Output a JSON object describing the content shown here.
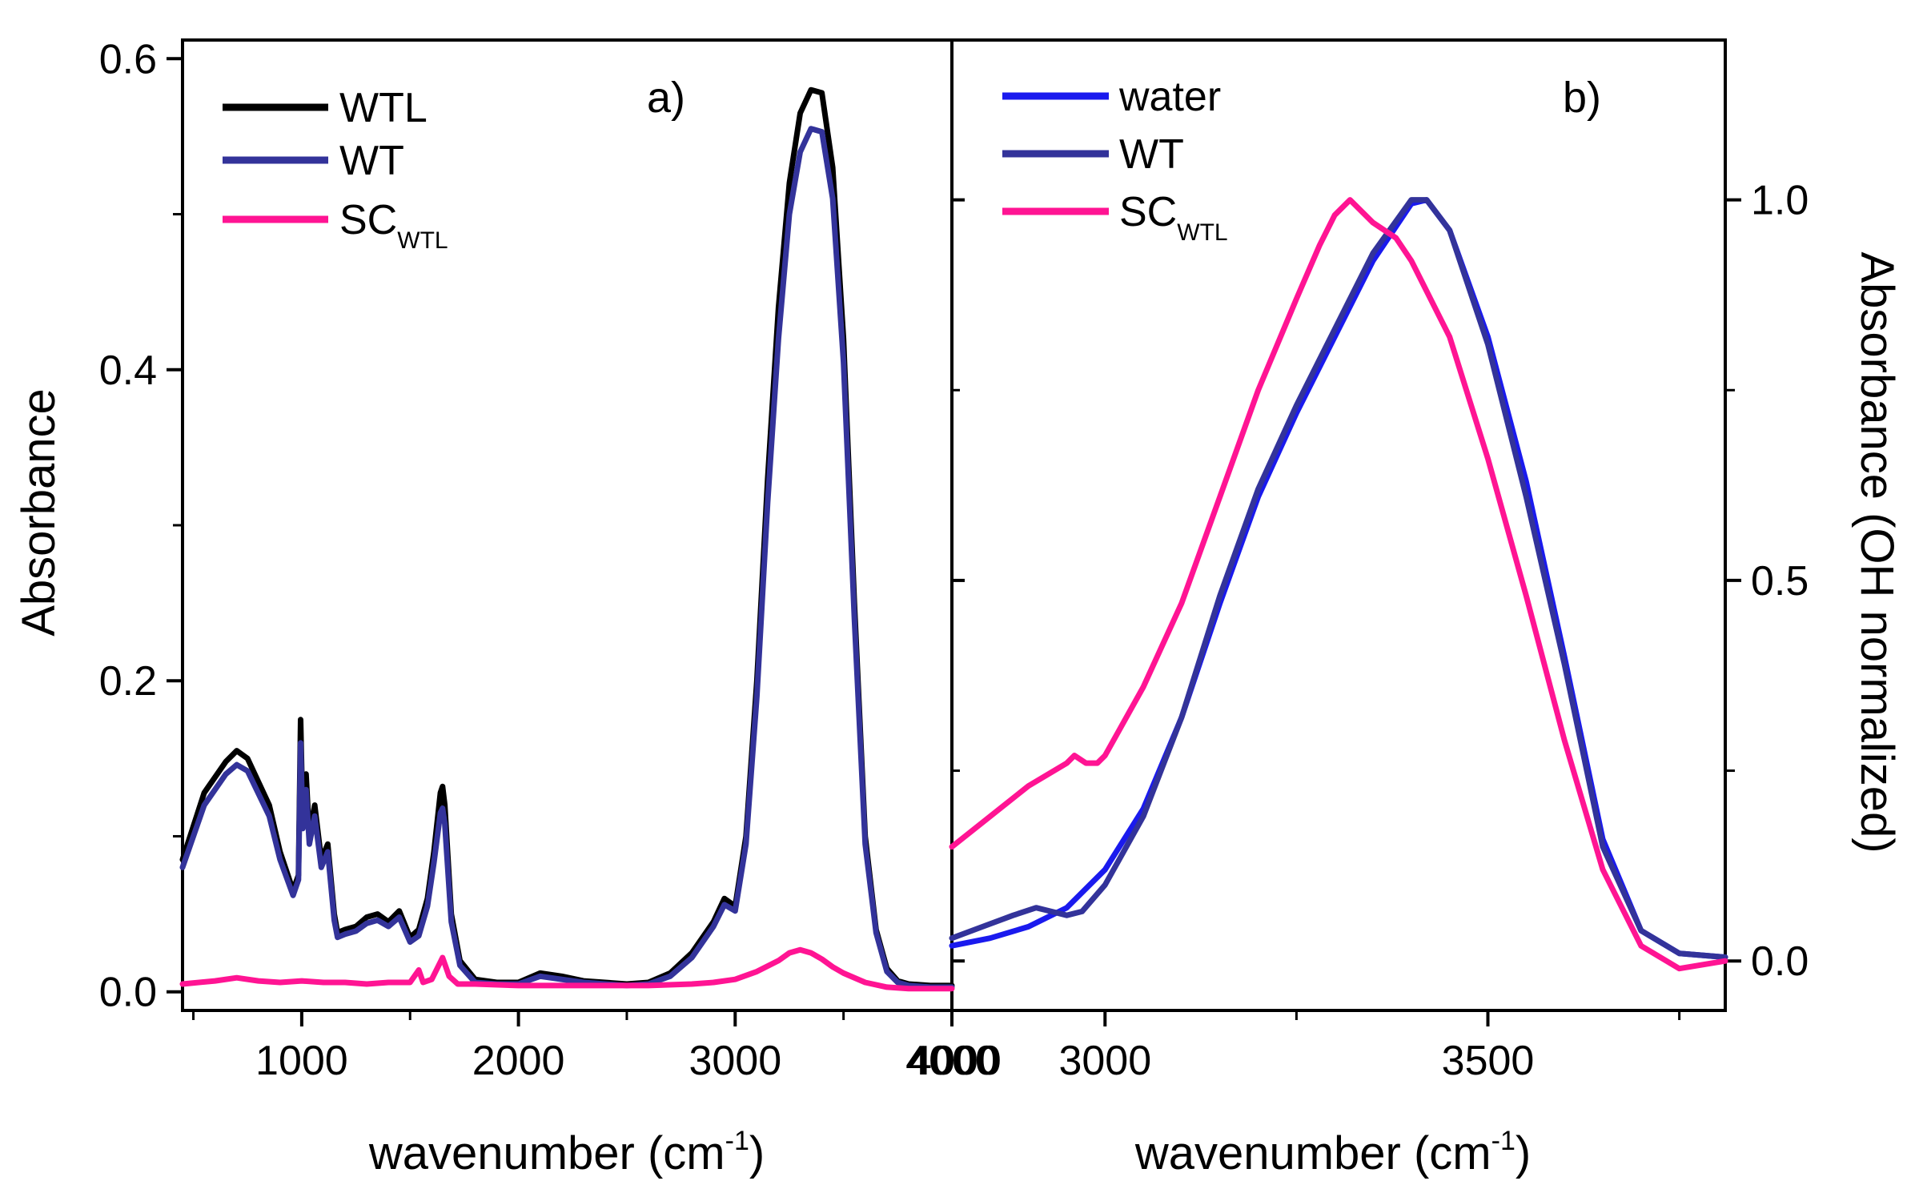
{
  "chart_data": [
    {
      "panel": "a)",
      "type": "line",
      "xlabel": "wavenumber (cm",
      "xlabel_sup": "-1",
      "xlabel_close": ")",
      "ylabel": "Absorbance",
      "xlim": [
        450,
        4000
      ],
      "ylim": [
        -0.012,
        0.612
      ],
      "xticks": [
        1000,
        2000,
        3000,
        4000
      ],
      "xtick_labels": [
        "1000",
        "2000",
        "3000",
        "4000"
      ],
      "yticks": [
        0.0,
        0.2,
        0.4,
        0.6
      ],
      "ytick_labels": [
        "0.0",
        "0.2",
        "0.4",
        "0.6"
      ],
      "legend": [
        {
          "name": "WTL",
          "sub": "",
          "color": "#000000"
        },
        {
          "name": "WT",
          "sub": "",
          "color": "#33339a"
        },
        {
          "name": "SC",
          "sub": "WTL",
          "color": "#ff1493"
        }
      ],
      "series": [
        {
          "name": "WTL",
          "color": "#000000",
          "x": [
            450,
            550,
            650,
            700,
            750,
            850,
            900,
            960,
            985,
            995,
            1005,
            1020,
            1035,
            1060,
            1090,
            1120,
            1150,
            1165,
            1200,
            1250,
            1300,
            1350,
            1400,
            1450,
            1500,
            1540,
            1580,
            1610,
            1640,
            1650,
            1660,
            1690,
            1730,
            1800,
            1900,
            2000,
            2100,
            2200,
            2300,
            2500,
            2600,
            2700,
            2800,
            2900,
            2950,
            3000,
            3050,
            3100,
            3150,
            3200,
            3250,
            3300,
            3350,
            3400,
            3450,
            3500,
            3550,
            3600,
            3650,
            3700,
            3750,
            3800,
            3900,
            4000
          ],
          "y": [
            0.085,
            0.128,
            0.148,
            0.155,
            0.15,
            0.12,
            0.09,
            0.065,
            0.075,
            0.175,
            0.11,
            0.14,
            0.1,
            0.12,
            0.085,
            0.095,
            0.05,
            0.038,
            0.04,
            0.042,
            0.048,
            0.05,
            0.045,
            0.052,
            0.035,
            0.04,
            0.06,
            0.09,
            0.128,
            0.132,
            0.12,
            0.05,
            0.02,
            0.008,
            0.006,
            0.006,
            0.012,
            0.01,
            0.007,
            0.005,
            0.006,
            0.012,
            0.025,
            0.045,
            0.06,
            0.055,
            0.1,
            0.2,
            0.33,
            0.44,
            0.52,
            0.565,
            0.58,
            0.578,
            0.53,
            0.42,
            0.25,
            0.1,
            0.04,
            0.015,
            0.007,
            0.005,
            0.004,
            0.004
          ]
        },
        {
          "name": "WT",
          "color": "#33339a",
          "x": [
            450,
            550,
            650,
            700,
            750,
            850,
            900,
            960,
            985,
            995,
            1005,
            1020,
            1035,
            1060,
            1090,
            1120,
            1150,
            1165,
            1200,
            1250,
            1300,
            1350,
            1400,
            1450,
            1500,
            1540,
            1580,
            1610,
            1640,
            1650,
            1660,
            1690,
            1730,
            1800,
            1900,
            2000,
            2100,
            2200,
            2300,
            2500,
            2600,
            2700,
            2800,
            2900,
            2950,
            3000,
            3050,
            3100,
            3150,
            3200,
            3250,
            3300,
            3350,
            3400,
            3450,
            3500,
            3550,
            3600,
            3650,
            3700,
            3750,
            3800,
            3900,
            4000
          ],
          "y": [
            0.08,
            0.12,
            0.14,
            0.146,
            0.142,
            0.113,
            0.085,
            0.062,
            0.072,
            0.16,
            0.105,
            0.13,
            0.095,
            0.113,
            0.08,
            0.09,
            0.046,
            0.035,
            0.037,
            0.039,
            0.044,
            0.046,
            0.042,
            0.048,
            0.032,
            0.036,
            0.055,
            0.083,
            0.115,
            0.118,
            0.108,
            0.045,
            0.017,
            0.006,
            0.005,
            0.005,
            0.01,
            0.008,
            0.006,
            0.004,
            0.005,
            0.01,
            0.022,
            0.042,
            0.056,
            0.052,
            0.095,
            0.19,
            0.315,
            0.42,
            0.5,
            0.54,
            0.555,
            0.553,
            0.51,
            0.405,
            0.24,
            0.095,
            0.038,
            0.013,
            0.006,
            0.004,
            0.003,
            0.003
          ]
        },
        {
          "name": "SC_WTL",
          "color": "#ff1493",
          "x": [
            450,
            600,
            700,
            800,
            900,
            1000,
            1100,
            1200,
            1300,
            1400,
            1500,
            1540,
            1560,
            1600,
            1650,
            1680,
            1720,
            1800,
            2000,
            2200,
            2400,
            2600,
            2800,
            2900,
            3000,
            3100,
            3200,
            3250,
            3300,
            3350,
            3400,
            3450,
            3500,
            3600,
            3700,
            3800,
            4000
          ],
          "y": [
            0.005,
            0.007,
            0.009,
            0.007,
            0.006,
            0.007,
            0.006,
            0.006,
            0.005,
            0.006,
            0.006,
            0.014,
            0.006,
            0.008,
            0.022,
            0.01,
            0.005,
            0.005,
            0.004,
            0.004,
            0.004,
            0.004,
            0.005,
            0.006,
            0.008,
            0.013,
            0.02,
            0.025,
            0.027,
            0.025,
            0.021,
            0.016,
            0.012,
            0.006,
            0.003,
            0.002,
            0.002
          ]
        }
      ]
    },
    {
      "panel": "b)",
      "type": "line",
      "xlabel": "wavenumber (cm",
      "xlabel_sup": "-1",
      "xlabel_close": ")",
      "ylabel": "Absorbance (OH normalized)",
      "xlim": [
        2800,
        3810
      ],
      "ylim": [
        -0.065,
        1.21
      ],
      "xticks": [
        3000,
        3500
      ],
      "xtick_labels": [
        "3000",
        "3500"
      ],
      "x_start_label": "4000",
      "yticks": [
        0.0,
        0.5,
        1.0
      ],
      "ytick_labels": [
        "0.0",
        "0.5",
        "1.0"
      ],
      "legend": [
        {
          "name": "water",
          "sub": "",
          "color": "#1a1aee"
        },
        {
          "name": "WT",
          "sub": "",
          "color": "#33339a"
        },
        {
          "name": "SC",
          "sub": "WTL",
          "color": "#ff1493"
        }
      ],
      "series": [
        {
          "name": "water",
          "color": "#1a1aee",
          "x": [
            2800,
            2850,
            2900,
            2950,
            3000,
            3050,
            3100,
            3150,
            3200,
            3250,
            3300,
            3350,
            3400,
            3420,
            3450,
            3500,
            3550,
            3600,
            3650,
            3700,
            3750,
            3810
          ],
          "y": [
            0.02,
            0.03,
            0.045,
            0.07,
            0.12,
            0.2,
            0.32,
            0.47,
            0.61,
            0.72,
            0.82,
            0.92,
            0.995,
            1.0,
            0.96,
            0.82,
            0.63,
            0.4,
            0.16,
            0.04,
            0.01,
            0.005
          ]
        },
        {
          "name": "WT",
          "color": "#33339a",
          "x": [
            2800,
            2840,
            2880,
            2910,
            2930,
            2950,
            2970,
            3000,
            3050,
            3100,
            3150,
            3200,
            3250,
            3300,
            3350,
            3400,
            3420,
            3450,
            3500,
            3550,
            3600,
            3650,
            3700,
            3750,
            3810
          ],
          "y": [
            0.03,
            0.045,
            0.06,
            0.07,
            0.065,
            0.06,
            0.065,
            0.1,
            0.19,
            0.32,
            0.48,
            0.62,
            0.73,
            0.83,
            0.93,
            1.0,
            1.0,
            0.96,
            0.81,
            0.61,
            0.39,
            0.15,
            0.04,
            0.01,
            0.005
          ]
        },
        {
          "name": "SC_WTL",
          "color": "#ff1493",
          "x": [
            2800,
            2850,
            2900,
            2950,
            2960,
            2975,
            2990,
            3000,
            3050,
            3100,
            3150,
            3200,
            3250,
            3280,
            3300,
            3320,
            3350,
            3380,
            3400,
            3450,
            3500,
            3550,
            3600,
            3650,
            3700,
            3750,
            3810
          ],
          "y": [
            0.15,
            0.19,
            0.23,
            0.26,
            0.27,
            0.26,
            0.26,
            0.27,
            0.36,
            0.47,
            0.61,
            0.75,
            0.87,
            0.94,
            0.98,
            1.0,
            0.97,
            0.95,
            0.92,
            0.82,
            0.66,
            0.48,
            0.29,
            0.12,
            0.02,
            -0.01,
            0.0
          ]
        }
      ]
    }
  ]
}
